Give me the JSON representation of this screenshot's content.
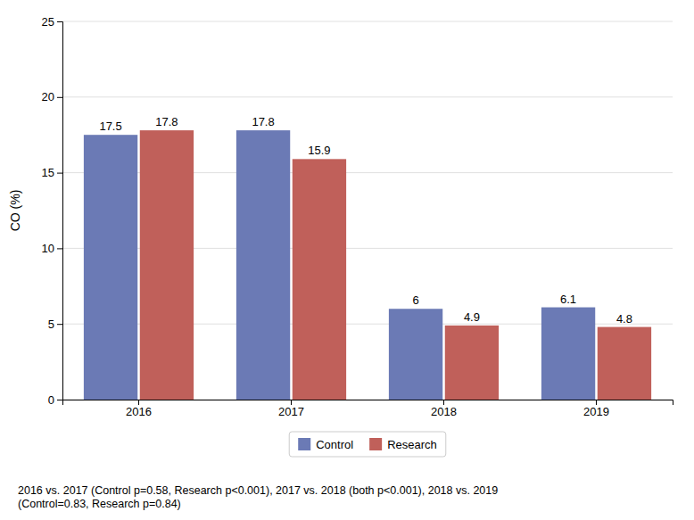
{
  "chart_data": {
    "type": "bar",
    "ylabel": "CO (%)",
    "categories": [
      "2016",
      "2017",
      "2018",
      "2019"
    ],
    "series": [
      {
        "name": "Control",
        "color": "#6b7ab5",
        "values": [
          17.5,
          17.8,
          6.0,
          6.1
        ]
      },
      {
        "name": "Research",
        "color": "#c0605a",
        "values": [
          17.8,
          15.9,
          4.9,
          4.8
        ]
      }
    ],
    "ylim": [
      0,
      25
    ],
    "yticks": [
      0,
      5,
      10,
      15,
      20,
      25
    ],
    "grid": true,
    "legend": "bottom",
    "data_labels": true,
    "annotations": [
      "2016 vs. 2017 (Control p=0.58, Research p<0.001), 2017 vs. 2018 (both p<0.001), 2018 vs. 2019\n(Control=0.83, Research p=0.84)"
    ]
  }
}
